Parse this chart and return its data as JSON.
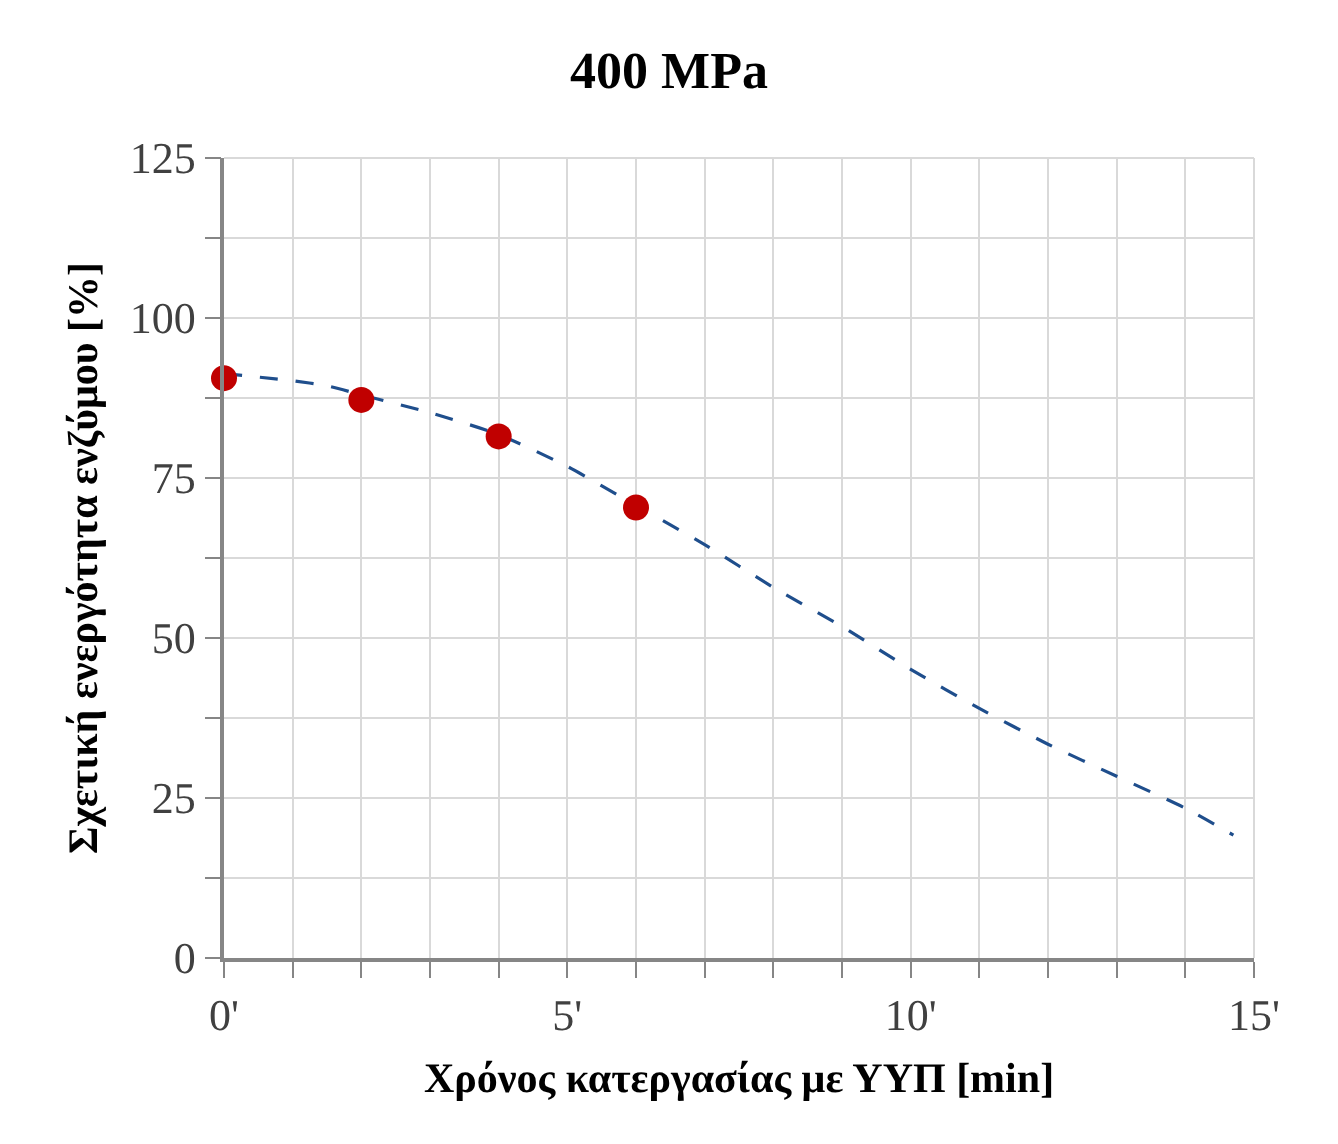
{
  "chart_data": {
    "type": "line",
    "title": "400 MPa",
    "xlabel": "Χρόνος κατεργασίας με ΥΥΠ [min]",
    "ylabel": "Σχετική ενεργότητα ενζύμου [%]",
    "series": [
      {
        "color": "#1f4e8c",
        "line_style": "dashed",
        "marker": "none",
        "x": [
          0,
          1,
          1.5,
          2,
          3,
          4,
          5,
          6,
          7,
          8,
          9,
          10,
          11,
          12,
          13,
          14,
          14.7
        ],
        "values": [
          91.3,
          90.2,
          89.4,
          88,
          85.2,
          81.8,
          76.8,
          70.7,
          64.6,
          57.9,
          51.8,
          45.1,
          39,
          33.4,
          28.4,
          23.4,
          19.2
        ]
      },
      {
        "type": "scatter",
        "color": "#c00000",
        "marker": "circle",
        "x": [
          0,
          2,
          4,
          6
        ],
        "values": [
          90.6,
          87.2,
          81.5,
          70.4
        ]
      }
    ],
    "xlim": [
      0,
      15
    ],
    "ylim": [
      0,
      125
    ],
    "xticks": [
      {
        "value": 0,
        "label": "0'"
      },
      {
        "value": 1,
        "label": null
      },
      {
        "value": 2,
        "label": null
      },
      {
        "value": 3,
        "label": null
      },
      {
        "value": 4,
        "label": null
      },
      {
        "value": 5,
        "label": "5'"
      },
      {
        "value": 6,
        "label": null
      },
      {
        "value": 7,
        "label": null
      },
      {
        "value": 8,
        "label": null
      },
      {
        "value": 9,
        "label": null
      },
      {
        "value": 10,
        "label": "10'"
      },
      {
        "value": 11,
        "label": null
      },
      {
        "value": 12,
        "label": null
      },
      {
        "value": 13,
        "label": null
      },
      {
        "value": 14,
        "label": null
      },
      {
        "value": 15,
        "label": "15'"
      }
    ],
    "yticks": [
      0,
      {
        "value": 12.5,
        "label": null
      },
      25,
      {
        "value": 37.5,
        "label": null
      },
      50,
      {
        "value": 62.5,
        "label": null
      },
      75,
      {
        "value": 87.5,
        "label": null
      },
      100,
      {
        "value": 112.5,
        "label": null
      },
      125
    ],
    "grid": true
  }
}
